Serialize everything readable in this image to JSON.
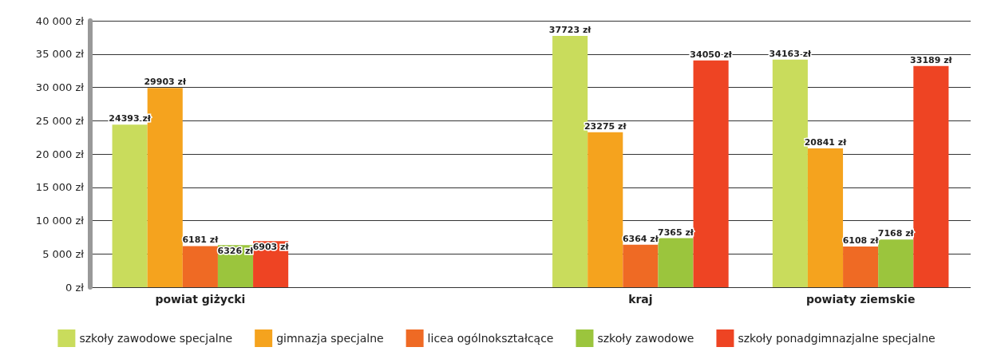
{
  "chart_data": {
    "type": "bar",
    "categories": [
      "powiat giżycki",
      null,
      "kraj",
      "powiaty ziemskie"
    ],
    "series": [
      {
        "name": "szkoły zawodowe specjalne",
        "color": "#c9dc5c",
        "values": [
          24393,
          null,
          37723,
          34163
        ],
        "value_labels": [
          "24393 zł",
          null,
          "37723 zł",
          "34163 zł"
        ]
      },
      {
        "name": "gimnazja specjalne",
        "color": "#f5a31e",
        "values": [
          29903,
          null,
          23275,
          20841
        ],
        "value_labels": [
          "29903 zł",
          null,
          "23275 zł",
          "20841 zł"
        ]
      },
      {
        "name": "licea ogólnokształcące",
        "color": "#ef6a24",
        "values": [
          6181,
          null,
          6364,
          6108
        ],
        "value_labels": [
          "6181 zł",
          null,
          "6364 zł",
          "6108 zł"
        ]
      },
      {
        "name": "szkoły zawodowe",
        "color": "#9bc53d",
        "values": [
          6326,
          null,
          7365,
          7168
        ],
        "value_labels": [
          "6326 zł",
          null,
          "7365 zł",
          "7168 zł"
        ]
      },
      {
        "name": "szkoły ponadgimnazjalne specjalne",
        "color": "#ee4423",
        "values": [
          6903,
          null,
          34050,
          33189
        ],
        "value_labels": [
          "6903 zł",
          null,
          "34050 zł",
          "33189 zł"
        ]
      }
    ],
    "ylim": [
      0,
      40000
    ],
    "yticks": [
      {
        "value": 0,
        "label": "0 zł"
      },
      {
        "value": 5000,
        "label": "5 000 zł"
      },
      {
        "value": 10000,
        "label": "10 000 zł"
      },
      {
        "value": 15000,
        "label": "15 000 zł"
      },
      {
        "value": 20000,
        "label": "20 000 zł"
      },
      {
        "value": 25000,
        "label": "25 000 zł"
      },
      {
        "value": 30000,
        "label": "30 000 zł"
      },
      {
        "value": 35000,
        "label": "35 000 zł"
      },
      {
        "value": 40000,
        "label": "40 000 zł"
      }
    ],
    "grid": "y",
    "legend": "bottom"
  }
}
